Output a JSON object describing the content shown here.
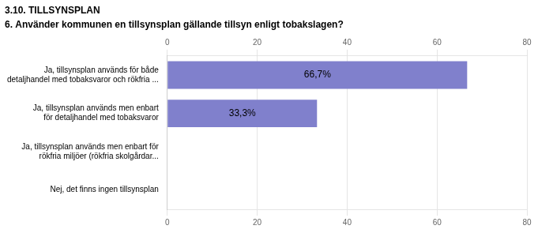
{
  "chart_data": {
    "type": "bar",
    "orientation": "horizontal",
    "title": "3.10. TILLSYNSPLAN",
    "subtitle": "6. Använder kommunen en tillsynsplan gällande tillsyn enligt tobakslagen?",
    "categories": [
      "Ja, tillsynsplan används för både\ndetaljhandel med tobaksvaror och rökfria ...",
      "Ja, tillsynsplan används men enbart\nför detaljhandel med tobaksvaror",
      "Ja, tillsynsplan används men enbart för\nrökfria miljöer (rökfria skolgårdar...",
      "Nej, det finns ingen tillsynsplan"
    ],
    "values": [
      66.7,
      33.3,
      0.0,
      0.0
    ],
    "value_labels": [
      "66,7%",
      "33,3%",
      null,
      null
    ],
    "data_labels": true,
    "color": "#8080cc",
    "xlim": [
      0,
      80
    ],
    "xticks": [
      0,
      20,
      40,
      60,
      80
    ],
    "grid": true
  }
}
